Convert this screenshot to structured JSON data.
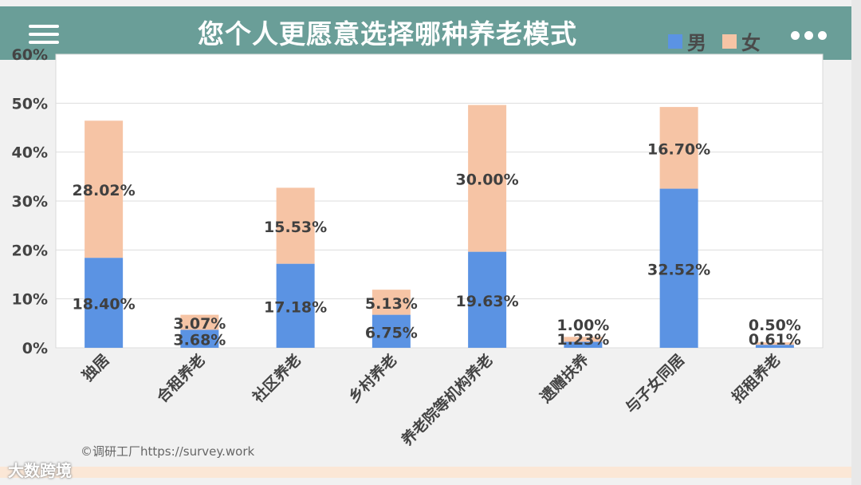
{
  "header": {
    "title": "您个人更愿意选择哪种养老模式",
    "menu_icon": "hamburger-menu-icon",
    "more_icon": "more-dots-icon"
  },
  "colors": {
    "male": "#5b93e3",
    "female": "#f6c4a5",
    "header_bg": "#6a9e98"
  },
  "chart_data": {
    "type": "bar",
    "stacked": true,
    "title": "您个人更愿意选择哪种养老模式",
    "categories": [
      "独居",
      "合租养老",
      "社区养老",
      "乡村养老",
      "养老院等机构养老",
      "遗赠扶养",
      "与子女同居",
      "招租养老"
    ],
    "series": [
      {
        "name": "男",
        "values": [
          18.4,
          3.68,
          17.18,
          6.75,
          19.63,
          1.23,
          32.52,
          0.61
        ],
        "labels": [
          "18.40%",
          "3.68%",
          "17.18%",
          "6.75%",
          "19.63%",
          "1.23%",
          "32.52%",
          "0.61%"
        ]
      },
      {
        "name": "女",
        "values": [
          28.02,
          3.07,
          15.53,
          5.13,
          30.0,
          1.0,
          16.7,
          0.5
        ],
        "labels": [
          "28.02%",
          "3.07%",
          "15.53%",
          "5.13%",
          "30.00%",
          "1.00%",
          "16.70%",
          "0.50%"
        ]
      }
    ],
    "yticks": [
      "0%",
      "10%",
      "20%",
      "30%",
      "40%",
      "50%",
      "60%"
    ],
    "ylim": [
      0,
      60
    ],
    "grid": true,
    "legend": "top-right"
  },
  "watermark": "©调研工厂https://survey.work",
  "logo_text": "大数跨境"
}
